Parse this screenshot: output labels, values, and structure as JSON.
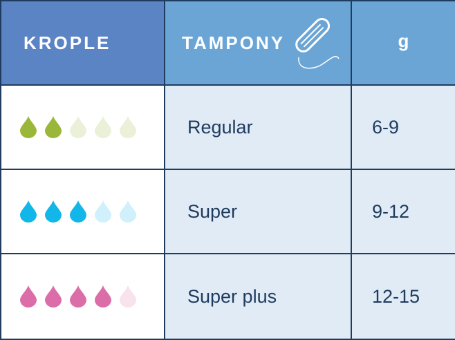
{
  "headers": {
    "drops": "KROPLE",
    "product": "TAMPONY",
    "unit": "g"
  },
  "colors": {
    "regular": "#9bb73a",
    "super": "#13b6e9",
    "super_plus": "#db6ea8"
  },
  "rows": [
    {
      "name": "Regular",
      "value": "6-9",
      "filled": 2,
      "total": 5,
      "color_key": "regular"
    },
    {
      "name": "Super",
      "value": "9-12",
      "filled": 3,
      "total": 5,
      "color_key": "super"
    },
    {
      "name": "Super plus",
      "value": "12-15",
      "filled": 4,
      "total": 5,
      "color_key": "super_plus"
    }
  ]
}
